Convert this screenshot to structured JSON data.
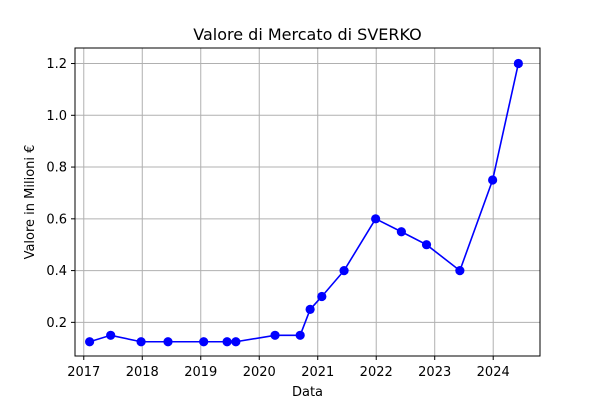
{
  "chart_data": {
    "type": "line",
    "title": "Valore di Mercato di SVERKO",
    "xlabel": "Data",
    "ylabel": "Valore in Milioni €",
    "xlim": [
      2016.85,
      2024.8
    ],
    "ylim": [
      0.07,
      1.26
    ],
    "xticks": [
      2017,
      2018,
      2019,
      2020,
      2021,
      2022,
      2023,
      2024
    ],
    "xtick_labels": [
      "2017",
      "2018",
      "2019",
      "2020",
      "2021",
      "2022",
      "2023",
      "2024"
    ],
    "yticks": [
      0.2,
      0.4,
      0.6,
      0.8,
      1.0,
      1.2
    ],
    "ytick_labels": [
      "0.2",
      "0.4",
      "0.6",
      "0.8",
      "1.0",
      "1.2"
    ],
    "grid": true,
    "series": [
      {
        "name": "Valore di Mercato",
        "color": "#0000ff",
        "marker": "circle",
        "x": [
          2017.1,
          2017.46,
          2017.98,
          2018.44,
          2019.05,
          2019.45,
          2019.6,
          2020.27,
          2020.7,
          2020.87,
          2021.07,
          2021.45,
          2021.99,
          2022.43,
          2022.86,
          2023.43,
          2023.99,
          2024.43
        ],
        "y": [
          0.125,
          0.15,
          0.125,
          0.125,
          0.125,
          0.125,
          0.125,
          0.15,
          0.15,
          0.25,
          0.3,
          0.4,
          0.6,
          0.55,
          0.5,
          0.4,
          0.75,
          1.2
        ]
      }
    ]
  }
}
